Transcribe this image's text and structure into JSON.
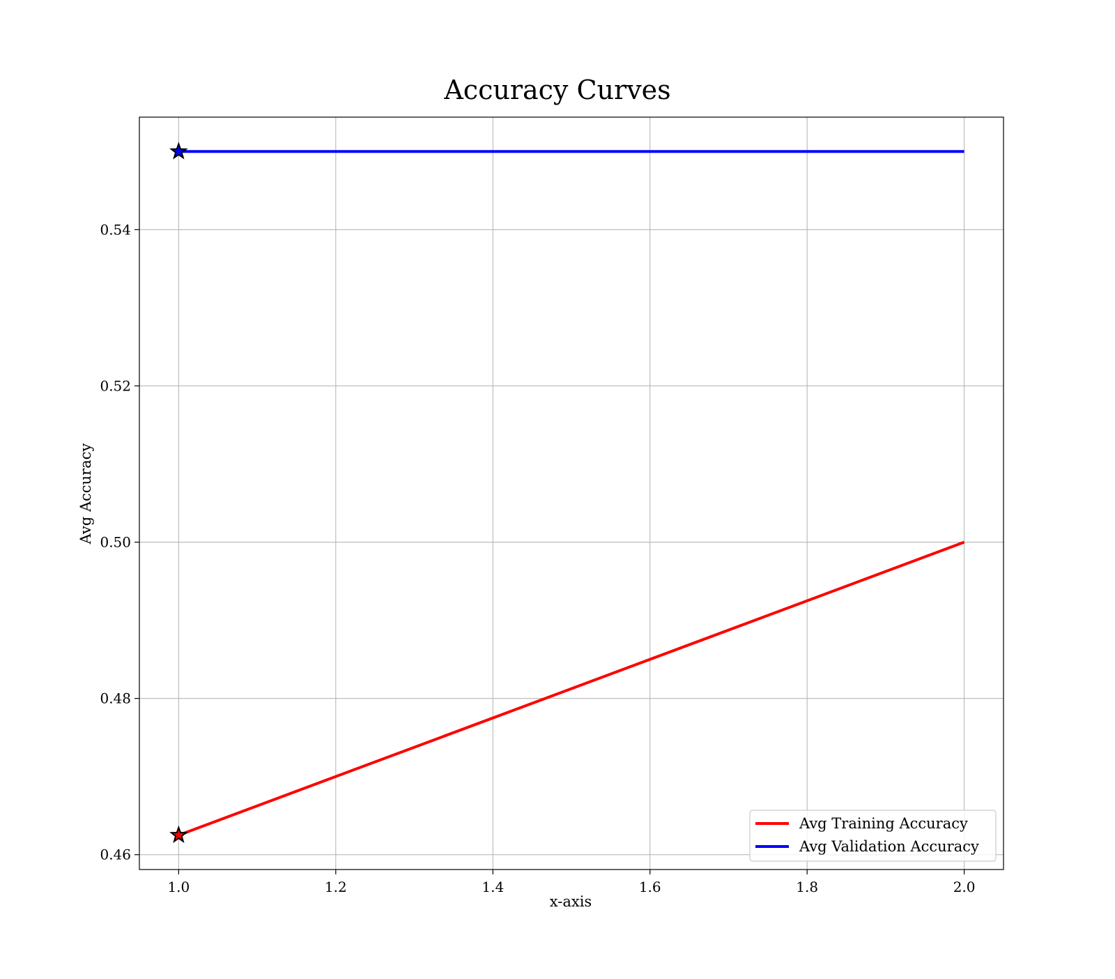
{
  "chart_data": {
    "type": "line",
    "title": "Accuracy Curves",
    "xlabel": "x-axis",
    "ylabel": "Avg Accuracy",
    "xlim": [
      0.95,
      2.05
    ],
    "ylim": [
      0.4581,
      0.5544
    ],
    "x_ticks": [
      1.0,
      1.2,
      1.4,
      1.6,
      1.8,
      2.0
    ],
    "x_tick_labels": [
      "1.0",
      "1.2",
      "1.4",
      "1.6",
      "1.8",
      "2.0"
    ],
    "y_ticks": [
      0.46,
      0.48,
      0.5,
      0.52,
      0.54
    ],
    "y_tick_labels": [
      "0.46",
      "0.48",
      "0.50",
      "0.52",
      "0.54"
    ],
    "grid": true,
    "legend_position": "bottom-right",
    "series": [
      {
        "name": "Avg Training Accuracy",
        "color": "#ff0000",
        "x": [
          1.0,
          2.0
        ],
        "y": [
          0.4625,
          0.5
        ],
        "markers": [
          {
            "x": 1.0,
            "y": 0.4625,
            "symbol": "star"
          }
        ]
      },
      {
        "name": "Avg Validation Accuracy",
        "color": "#0000ff",
        "x": [
          1.0,
          2.0
        ],
        "y": [
          0.55,
          0.55
        ],
        "markers": [
          {
            "x": 1.0,
            "y": 0.55,
            "symbol": "star"
          }
        ]
      }
    ]
  }
}
